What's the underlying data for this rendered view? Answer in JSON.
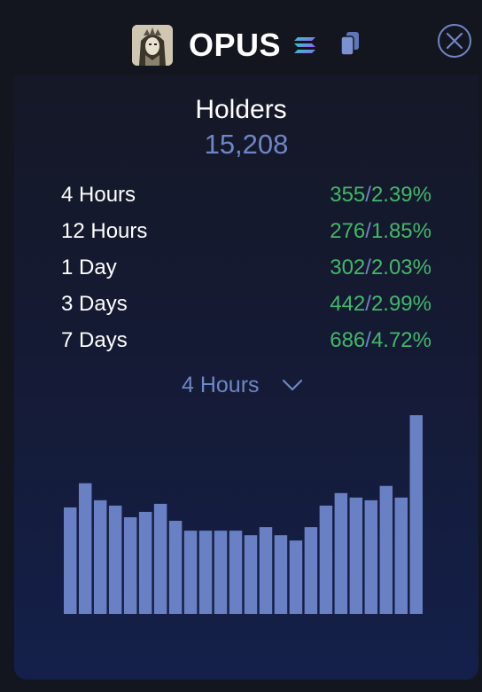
{
  "header": {
    "token_name": "OPUS",
    "chain_icon": "solana-icon",
    "copy_icon": "copy-icon",
    "close_icon": "close-icon"
  },
  "holders": {
    "title": "Holders",
    "count": "15,208"
  },
  "stats": [
    {
      "label": "4 Hours",
      "count": "355",
      "percent": "2.39%"
    },
    {
      "label": "12 Hours",
      "count": "276",
      "percent": "1.85%"
    },
    {
      "label": "1 Day",
      "count": "302",
      "percent": "2.03%"
    },
    {
      "label": "3 Days",
      "count": "442",
      "percent": "2.99%"
    },
    {
      "label": "7 Days",
      "count": "686",
      "percent": "4.72%"
    }
  ],
  "period_select": {
    "selected": "4 Hours"
  },
  "colors": {
    "accent": "#6f86c6",
    "positive": "#42b86a",
    "bar": "#6a80c4"
  },
  "chart_data": {
    "type": "bar",
    "values": [
      119,
      146,
      127,
      121,
      108,
      114,
      123,
      104,
      93,
      93,
      93,
      93,
      88,
      97,
      88,
      82,
      97,
      121,
      135,
      130,
      127,
      143,
      130,
      222
    ]
  }
}
